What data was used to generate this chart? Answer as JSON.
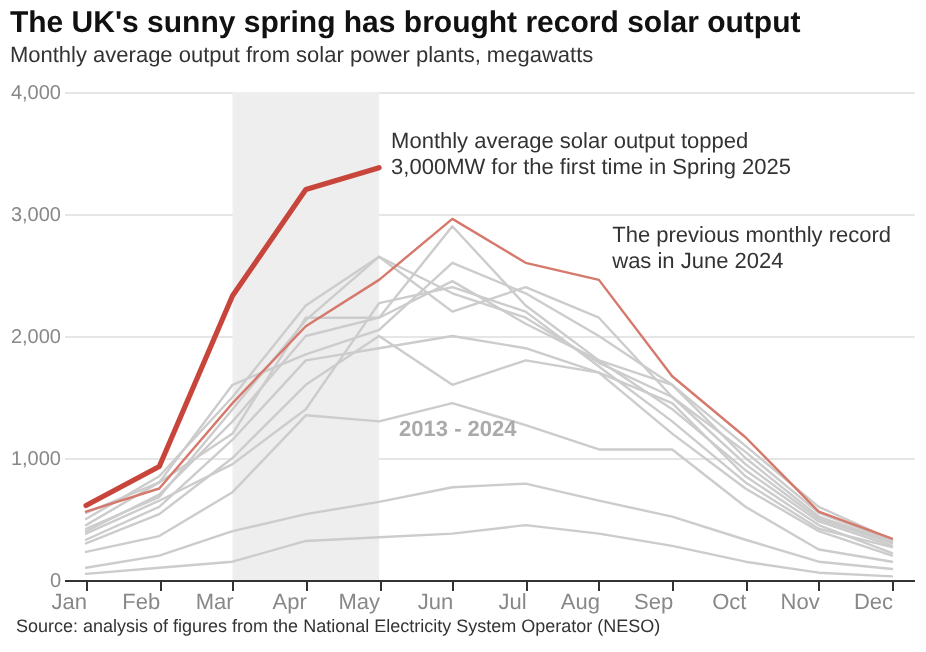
{
  "chart_data": {
    "type": "line",
    "title": "The UK's sunny spring has brought record solar output",
    "subtitle": "Monthly average output from solar power plants, megawatts",
    "categories": [
      "Jan",
      "Feb",
      "Mar",
      "Apr",
      "May",
      "Jun",
      "Jul",
      "Aug",
      "Sep",
      "Oct",
      "Nov",
      "Dec"
    ],
    "series": [
      {
        "color": "#cccccc",
        "values": [
          50,
          100,
          150,
          320,
          350,
          380,
          450,
          380,
          280,
          150,
          60,
          30
        ]
      },
      {
        "color": "#cccccc",
        "values": [
          100,
          200,
          400,
          540,
          640,
          760,
          790,
          650,
          520,
          330,
          150,
          90
        ]
      },
      {
        "color": "#cccccc",
        "values": [
          230,
          360,
          720,
          1350,
          1300,
          1450,
          1270,
          1070,
          1070,
          600,
          250,
          150
        ]
      },
      {
        "color": "#cccccc",
        "values": [
          300,
          540,
          1000,
          1600,
          2000,
          1600,
          1800,
          1700,
          1200,
          750,
          400,
          200
        ]
      },
      {
        "color": "#cccccc",
        "values": [
          330,
          600,
          1150,
          1800,
          1900,
          2000,
          1900,
          1700,
          1450,
          850,
          450,
          220
        ]
      },
      {
        "color": "#cccccc",
        "values": [
          380,
          650,
          950,
          1400,
          2270,
          2400,
          2200,
          1750,
          1300,
          800,
          420,
          270
        ]
      },
      {
        "color": "#cccccc",
        "values": [
          400,
          700,
          1300,
          2000,
          2150,
          2450,
          2100,
          1800,
          1400,
          900,
          480,
          280
        ]
      },
      {
        "color": "#cccccc",
        "values": [
          420,
          680,
          1400,
          2130,
          2650,
          2350,
          2150,
          1780,
          1500,
          950,
          500,
          300
        ]
      },
      {
        "color": "#cccccc",
        "values": [
          450,
          800,
          1600,
          1850,
          2050,
          2600,
          2350,
          2000,
          1600,
          1000,
          520,
          310
        ]
      },
      {
        "color": "#cccccc",
        "values": [
          500,
          850,
          1500,
          2250,
          2650,
          2200,
          2400,
          2150,
          1500,
          1050,
          550,
          320
        ]
      },
      {
        "color": "#cccccc",
        "values": [
          550,
          800,
          1200,
          2150,
          2150,
          2900,
          2250,
          1800,
          1600,
          1100,
          600,
          330
        ]
      },
      {
        "color": "#d5796c",
        "values": [
          560,
          750,
          1450,
          2080,
          2460,
          2960,
          2600,
          2460,
          1670,
          1170,
          560,
          340
        ]
      },
      {
        "color": "#c8453b",
        "values": [
          610,
          930,
          2330,
          3200,
          3380,
          null,
          null,
          null,
          null,
          null,
          null,
          null
        ]
      }
    ],
    "ylim": [
      0,
      4000
    ],
    "yticks": [
      0,
      {
        "value": 1000,
        "label": "1,000"
      },
      {
        "value": 2000,
        "label": "2,000"
      },
      {
        "value": 3000,
        "label": "3,000"
      },
      {
        "value": 4000,
        "label": "4,000"
      }
    ],
    "grid": "y",
    "legend": false,
    "bands": [
      {
        "axis": "x",
        "from": "Mar",
        "to": "May",
        "color": "#eeeeee"
      }
    ],
    "annotations": [
      {
        "text": "Monthly average solar output topped 3,000MW for the first time in Spring 2025",
        "x": "May",
        "y": 3380
      },
      "The previous monthly record was in June 2024",
      {
        "text": "2013 - 2024",
        "x": "May",
        "y": 1330
      },
      "Source: analysis of figures from the National Electricity System Operator (NESO)"
    ]
  }
}
